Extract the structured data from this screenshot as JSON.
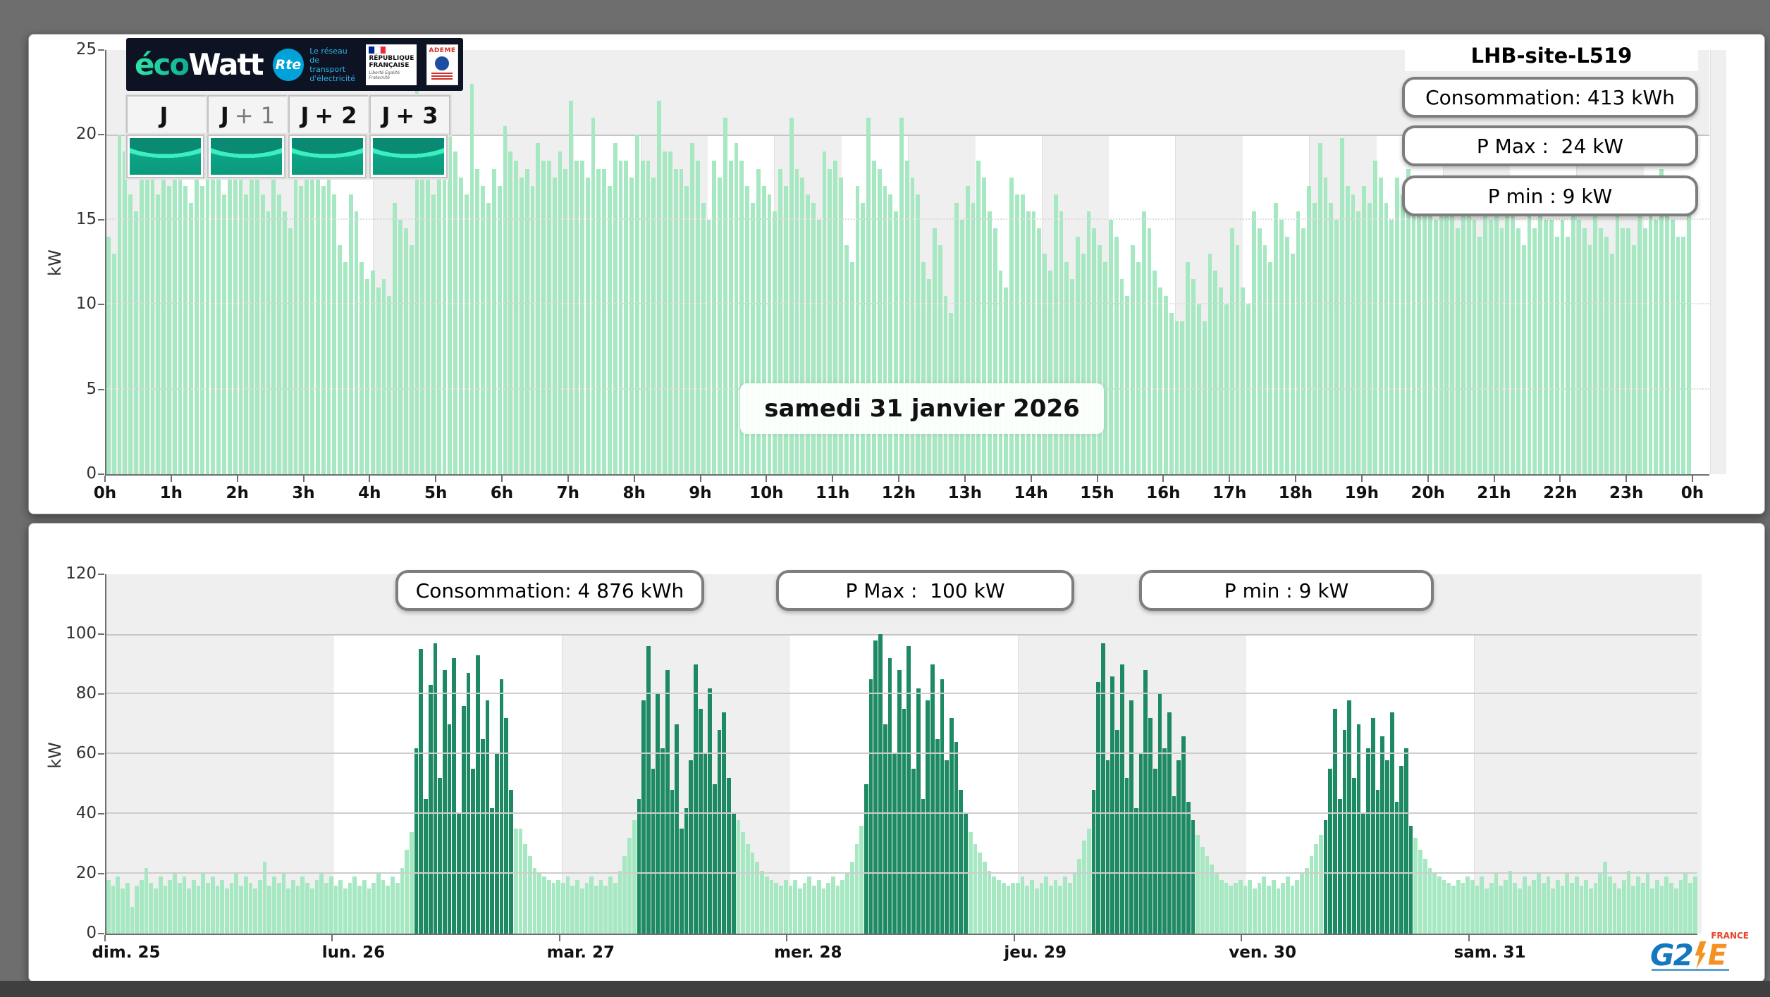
{
  "header": {
    "ecowatt_eco": "éco",
    "ecowatt_watt": "Watt",
    "rte": "Rte",
    "rte_tagline_1": "Le réseau",
    "rte_tagline_2": "de transport",
    "rte_tagline_3": "d'électricité",
    "republique_1": "RÉPUBLIQUE",
    "republique_2": "FRANÇAISE",
    "motto_1": "Liberté",
    "motto_2": "Égalité",
    "motto_3": "Fraternité",
    "ademe": "ADEME"
  },
  "top_panel": {
    "title": "LHB-site-L519",
    "stats": [
      {
        "label": "Consommation: 413 kWh"
      },
      {
        "label": "P Max :  24 kW"
      },
      {
        "label": "P min : 9 kW"
      }
    ],
    "date_label": "samedi 31 janvier 2026",
    "day_buttons": [
      {
        "prefix": "J",
        "suffix": ""
      },
      {
        "prefix": "J",
        "suffix": "+ 1"
      },
      {
        "prefix": "J",
        "suffix": "+ 2"
      },
      {
        "prefix": "J",
        "suffix": "+ 3"
      }
    ]
  },
  "bottom_panel": {
    "stats": [
      {
        "label": "Consommation: 4 876 kWh"
      },
      {
        "label": "P Max :  100 kW"
      },
      {
        "label": "P min : 9 kW"
      }
    ]
  },
  "g2e": {
    "name": "G2",
    "e": "E",
    "country": "FRANCE"
  },
  "chart_data": [
    {
      "type": "bar",
      "title": "samedi 31 janvier 2026",
      "ylabel": "kW",
      "ylim": [
        0,
        25
      ],
      "yticks": [
        0,
        5,
        10,
        15,
        20,
        25
      ],
      "x_hour_labels": [
        "0h",
        "1h",
        "2h",
        "3h",
        "4h",
        "5h",
        "6h",
        "7h",
        "8h",
        "9h",
        "10h",
        "11h",
        "12h",
        "13h",
        "14h",
        "15h",
        "16h",
        "17h",
        "18h",
        "19h",
        "20h",
        "21h",
        "22h",
        "23h",
        "0h"
      ],
      "interval_minutes": 5,
      "bar_color": "#a5e8c1",
      "grid": true,
      "background": "alternating hour columns, grey band above 20 kW",
      "values": [
        14,
        13,
        20,
        19,
        16.5,
        15.5,
        18.5,
        17.5,
        17.5,
        16.5,
        18,
        17,
        18.5,
        17.5,
        17,
        16,
        18,
        17,
        19,
        18,
        17.5,
        16.5,
        18.5,
        17.5,
        17.5,
        16.5,
        18.5,
        17.5,
        16.5,
        15.5,
        17.5,
        16.5,
        15.5,
        14.5,
        18,
        17,
        20.5,
        19.5,
        18,
        17,
        17.5,
        16.5,
        13.5,
        12.5,
        16.5,
        15.5,
        12.5,
        11.5,
        12,
        11,
        11.5,
        10.5,
        16,
        15,
        14.5,
        13.5,
        24,
        20,
        17.5,
        16.5,
        19.5,
        18.5,
        21.5,
        19,
        17.5,
        16.5,
        23,
        18,
        17,
        16,
        18,
        17,
        20.5,
        19,
        18.5,
        17.5,
        18,
        17,
        19.5,
        18.5,
        18.5,
        17.5,
        19,
        18,
        22,
        18.5,
        18.5,
        17.5,
        21,
        18,
        18,
        17,
        19.5,
        18.5,
        18.5,
        17.5,
        20,
        18.5,
        18.5,
        17.5,
        22,
        19,
        19,
        18,
        18,
        17,
        19.5,
        18.5,
        16,
        15,
        18.5,
        17.5,
        21,
        18.5,
        19.5,
        18.5,
        17,
        16,
        18,
        17,
        16.5,
        15.5,
        18,
        17,
        21,
        18,
        17.5,
        16.5,
        16,
        15,
        19,
        18,
        18.5,
        17.5,
        13.5,
        12.5,
        17,
        16,
        21,
        18.5,
        18,
        17,
        16.5,
        15.5,
        21,
        18.5,
        17.5,
        16.5,
        12.5,
        11.5,
        14.5,
        13.5,
        10.5,
        9.5,
        16,
        15,
        17,
        16,
        18.5,
        17.5,
        15.5,
        14.5,
        12,
        11,
        17.5,
        16.5,
        16.5,
        15.5,
        15.5,
        14.5,
        13,
        12,
        16.5,
        15.5,
        12.5,
        11.5,
        14,
        13,
        15.5,
        14.5,
        13.5,
        12.5,
        15,
        14,
        11.5,
        10.5,
        13.5,
        12.5,
        15.5,
        14.5,
        12,
        11,
        10.5,
        9.5,
        9,
        9,
        12.5,
        11.5,
        10,
        9,
        13,
        12,
        11,
        10,
        14.5,
        13.5,
        11,
        10,
        15.5,
        14.5,
        13.5,
        12.5,
        16,
        15,
        14,
        13,
        15.5,
        14.5,
        17,
        16,
        19.5,
        17.5,
        16,
        15,
        19.8,
        17,
        16.5,
        15.5,
        17,
        16,
        18.5,
        17.5,
        16,
        15,
        17.5,
        16.5,
        18,
        17,
        16.5,
        15.5,
        16,
        15,
        17,
        16,
        15.5,
        14.5,
        16.5,
        15.5,
        15,
        14,
        16,
        15,
        15.5,
        14.5,
        16.5,
        15.5,
        14.5,
        13.5,
        15.5,
        14.5,
        16,
        15,
        15,
        14,
        15,
        14,
        16,
        15,
        14.5,
        13.5,
        15.5,
        14.5,
        14,
        13,
        15.5,
        14.5,
        14.5,
        13.5,
        15.5,
        14.5,
        16,
        15,
        18,
        16.5,
        15,
        14,
        14,
        15.5
      ]
    },
    {
      "type": "bar",
      "title": "Semaine du dim. 25 au sam. 31",
      "ylabel": "kW",
      "ylim": [
        0,
        120
      ],
      "yticks": [
        0,
        20,
        40,
        60,
        80,
        100,
        120
      ],
      "day_labels": [
        "dim. 25",
        "lun. 26",
        "mar. 27",
        "mer. 28",
        "jeu. 29",
        "ven. 30",
        "sam. 31"
      ],
      "interval_minutes": 30,
      "bar_color_low": "#a5e8c1",
      "bar_color_high": "#1d8a63",
      "grid": true,
      "background": "alternating day columns, grey band above 100 kW",
      "dark_ranges": [
        {
          "day": 1,
          "from": 17,
          "to": 37
        },
        {
          "day": 2,
          "from": 16,
          "to": 36
        },
        {
          "day": 3,
          "from": 16,
          "to": 37
        },
        {
          "day": 4,
          "from": 16,
          "to": 37
        },
        {
          "day": 5,
          "from": 17,
          "to": 35
        }
      ],
      "values": [
        18,
        16,
        19,
        15,
        17,
        9,
        16,
        18,
        22,
        17,
        15,
        19,
        16,
        18,
        20,
        17,
        19,
        15,
        18,
        16,
        20,
        17,
        19,
        16,
        18,
        15,
        17,
        20,
        16,
        19,
        17,
        15,
        18,
        24,
        16,
        19,
        17,
        20,
        15,
        18,
        16,
        19,
        17,
        15,
        18,
        20,
        17,
        19,
        16,
        18,
        15,
        17,
        19,
        16,
        18,
        15,
        17,
        20,
        18,
        16,
        19,
        17,
        22,
        28,
        34,
        62,
        95,
        45,
        83,
        97,
        52,
        88,
        70,
        92,
        40,
        76,
        87,
        55,
        93,
        65,
        78,
        42,
        60,
        85,
        72,
        48,
        35,
        35,
        30,
        26,
        22,
        20,
        19,
        18,
        17,
        18,
        17,
        19,
        16,
        18,
        15,
        17,
        19,
        16,
        18,
        16,
        19,
        17,
        21,
        26,
        32,
        38,
        45,
        78,
        96,
        55,
        80,
        62,
        88,
        48,
        70,
        35,
        42,
        58,
        90,
        75,
        60,
        82,
        50,
        68,
        74,
        52,
        40,
        38,
        34,
        30,
        27,
        24,
        21,
        19,
        18,
        17,
        16,
        18,
        16,
        18,
        15,
        17,
        19,
        16,
        18,
        15,
        17,
        19,
        16,
        18,
        20,
        24,
        30,
        36,
        50,
        85,
        98,
        100,
        70,
        92,
        60,
        88,
        75,
        96,
        55,
        82,
        45,
        78,
        90,
        65,
        85,
        58,
        72,
        64,
        48,
        40,
        34,
        30,
        27,
        24,
        21,
        19,
        18,
        17,
        16,
        17,
        17,
        19,
        16,
        18,
        15,
        17,
        19,
        16,
        18,
        16,
        19,
        17,
        20,
        25,
        31,
        35,
        48,
        84,
        97,
        58,
        86,
        68,
        90,
        52,
        78,
        42,
        60,
        88,
        72,
        55,
        80,
        62,
        74,
        46,
        58,
        66,
        44,
        38,
        33,
        29,
        26,
        23,
        20,
        18,
        17,
        16,
        17,
        18,
        16,
        18,
        15,
        17,
        19,
        16,
        18,
        15,
        17,
        19,
        16,
        18,
        20,
        22,
        26,
        30,
        33,
        38,
        55,
        75,
        45,
        68,
        78,
        52,
        70,
        40,
        62,
        72,
        48,
        66,
        58,
        74,
        44,
        56,
        62,
        36,
        32,
        28,
        25,
        22,
        20,
        19,
        18,
        17,
        16,
        18,
        17,
        19,
        18,
        16,
        19,
        15,
        17,
        20,
        16,
        18,
        21,
        17,
        15,
        19,
        16,
        18,
        20,
        17,
        19,
        15,
        18,
        16,
        20,
        17,
        19,
        16,
        18,
        15,
        17,
        20,
        24,
        19,
        17,
        15,
        18,
        21,
        16,
        19,
        17,
        20,
        15,
        18,
        16,
        19,
        17,
        15,
        18,
        20,
        17,
        19
      ]
    }
  ]
}
